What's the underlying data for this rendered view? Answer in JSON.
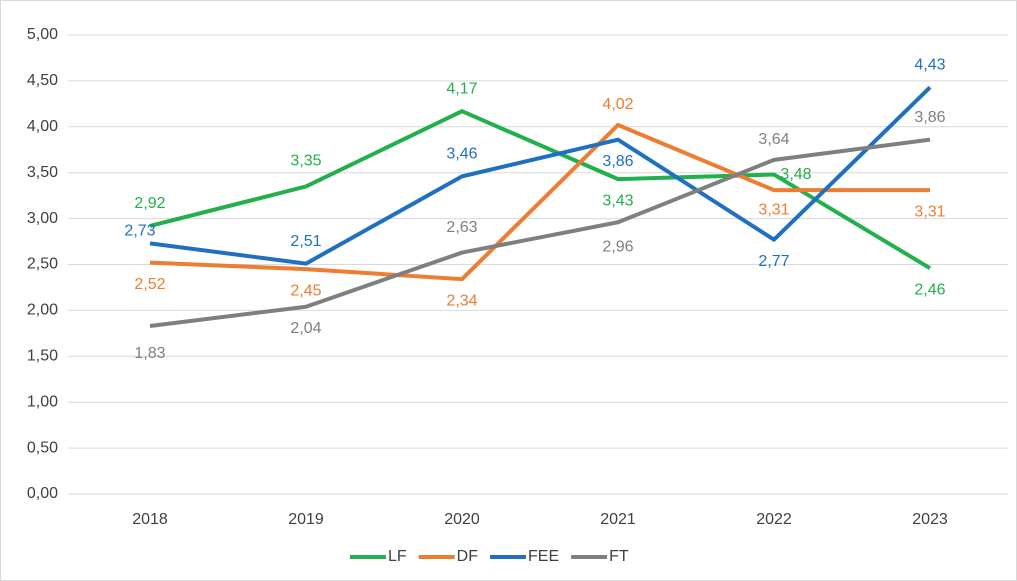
{
  "chart_data": {
    "type": "line",
    "categories": [
      "2018",
      "2019",
      "2020",
      "2021",
      "2022",
      "2023"
    ],
    "series": [
      {
        "name": "LF",
        "color": "#21b04b",
        "values": [
          2.92,
          3.35,
          4.17,
          3.43,
          3.48,
          2.46
        ],
        "value_labels": [
          "2,92",
          "3,35",
          "4,17",
          "3,43",
          "3,48",
          "2,46"
        ]
      },
      {
        "name": "DF",
        "color": "#ed7d31",
        "values": [
          2.52,
          2.45,
          2.34,
          4.02,
          3.31,
          3.31
        ],
        "value_labels": [
          "2,52",
          "2,45",
          "2,34",
          "4,02",
          "3,31",
          "3,31"
        ]
      },
      {
        "name": "FEE",
        "color": "#1f70c1",
        "values": [
          2.73,
          2.51,
          3.46,
          3.86,
          2.77,
          4.43
        ],
        "value_labels": [
          "2,73",
          "2,51",
          "3,46",
          "3,86",
          "2,77",
          "4,43"
        ]
      },
      {
        "name": "FT",
        "color": "#7f7f7f",
        "values": [
          1.83,
          2.04,
          2.63,
          2.96,
          3.64,
          3.86
        ],
        "value_labels": [
          "1,83",
          "2,04",
          "2,63",
          "2,96",
          "3,64",
          "3,86"
        ]
      }
    ],
    "ylim": [
      0,
      5
    ],
    "yticks": [
      {
        "value": 0,
        "label": "0,00"
      },
      {
        "value": 0.5,
        "label": "0,50"
      },
      {
        "value": 1,
        "label": "1,00"
      },
      {
        "value": 1.5,
        "label": "1,50"
      },
      {
        "value": 2,
        "label": "2,00"
      },
      {
        "value": 2.5,
        "label": "2,50"
      },
      {
        "value": 3,
        "label": "3,00"
      },
      {
        "value": 3.5,
        "label": "3,50"
      },
      {
        "value": 4,
        "label": "4,00"
      },
      {
        "value": 4.5,
        "label": "4,50"
      },
      {
        "value": 5,
        "label": "5,00"
      }
    ],
    "grid": true,
    "legend": "bottom"
  }
}
